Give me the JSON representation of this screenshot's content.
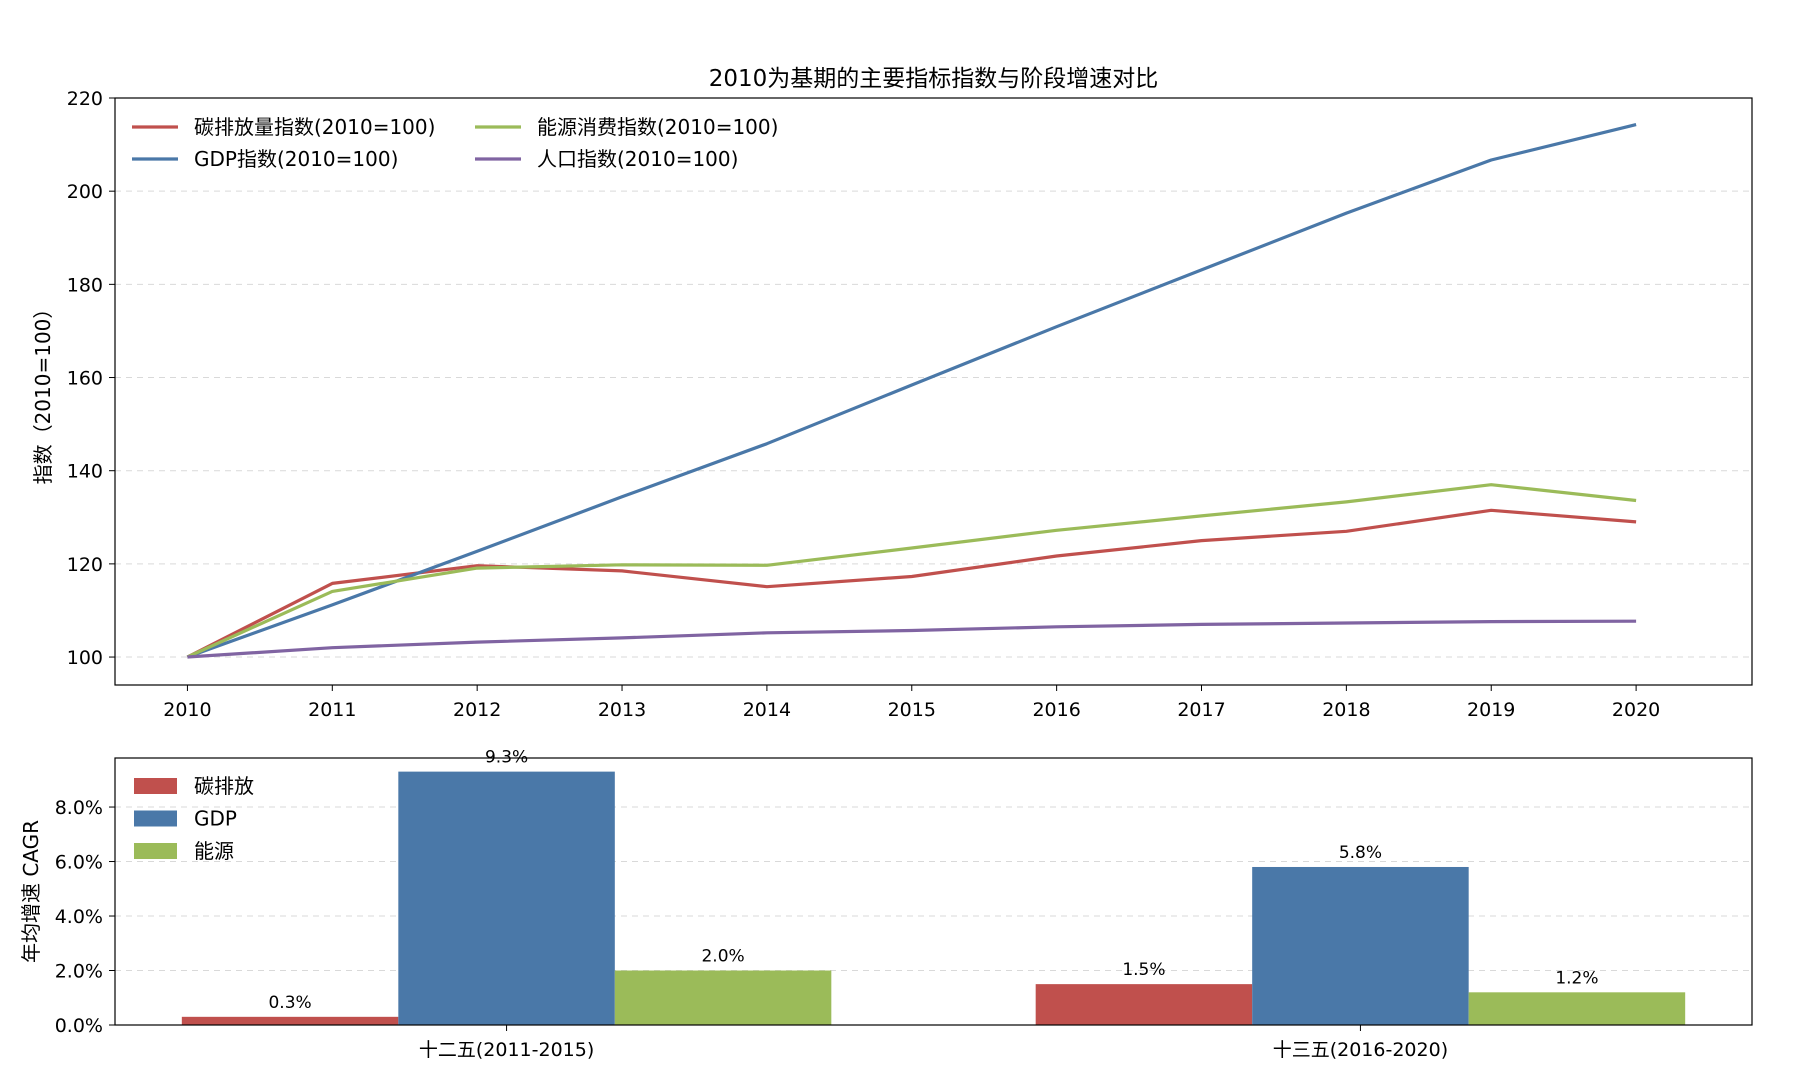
{
  "chart_data": [
    {
      "type": "line",
      "title": "2010为基期的主要指标指数与阶段增速对比",
      "xlabel": "",
      "ylabel": "指数（2010=100）",
      "x": [
        2010,
        2011,
        2012,
        2013,
        2014,
        2015,
        2016,
        2017,
        2018,
        2019,
        2020
      ],
      "xlim": [
        2009.5,
        2020.8
      ],
      "ylim": [
        94,
        220
      ],
      "yticks": [
        100,
        120,
        140,
        160,
        180,
        200,
        220
      ],
      "grid": true,
      "legend": "top-left",
      "series": [
        {
          "name": "碳排放量指数(2010=100)",
          "color": "#c0504d",
          "values": [
            100,
            115.8,
            119.6,
            118.5,
            115.1,
            117.3,
            121.7,
            125.0,
            127.0,
            131.5,
            129.0
          ]
        },
        {
          "name": "GDP指数(2010=100)",
          "color": "#4a78a8",
          "values": [
            100,
            111.2,
            122.7,
            134.4,
            145.8,
            158.4,
            170.9,
            183.1,
            195.3,
            206.7,
            214.3
          ]
        },
        {
          "name": "能源消费指数(2010=100)",
          "color": "#9bbb59",
          "values": [
            100,
            114.1,
            119.1,
            119.8,
            119.7,
            123.4,
            127.2,
            130.3,
            133.3,
            137.0,
            133.6
          ]
        },
        {
          "name": "人口指数(2010=100)",
          "color": "#8064a2",
          "values": [
            100,
            102.0,
            103.2,
            104.1,
            105.2,
            105.7,
            106.5,
            107.0,
            107.3,
            107.6,
            107.7
          ]
        }
      ]
    },
    {
      "type": "bar",
      "title": "",
      "xlabel": "",
      "ylabel": "年均增速 CAGR",
      "categories": [
        "十二五(2011-2015)",
        "十三五(2016-2020)"
      ],
      "ylim": [
        0,
        9.8
      ],
      "yticks": [
        "0.0%",
        "2.0%",
        "4.0%",
        "6.0%",
        "8.0%"
      ],
      "ytick_values": [
        0,
        2,
        4,
        6,
        8
      ],
      "grid": true,
      "legend": "top-left",
      "series": [
        {
          "name": "碳排放",
          "color": "#c0504d",
          "values": [
            0.3,
            1.5
          ],
          "labels": [
            "0.3%",
            "1.5%"
          ]
        },
        {
          "name": "GDP",
          "color": "#4a78a8",
          "values": [
            9.3,
            5.8
          ],
          "labels": [
            "9.3%",
            "5.8%"
          ]
        },
        {
          "name": "能源",
          "color": "#9bbb59",
          "values": [
            2.0,
            1.2
          ],
          "labels": [
            "2.0%",
            "1.2%"
          ]
        }
      ]
    }
  ]
}
